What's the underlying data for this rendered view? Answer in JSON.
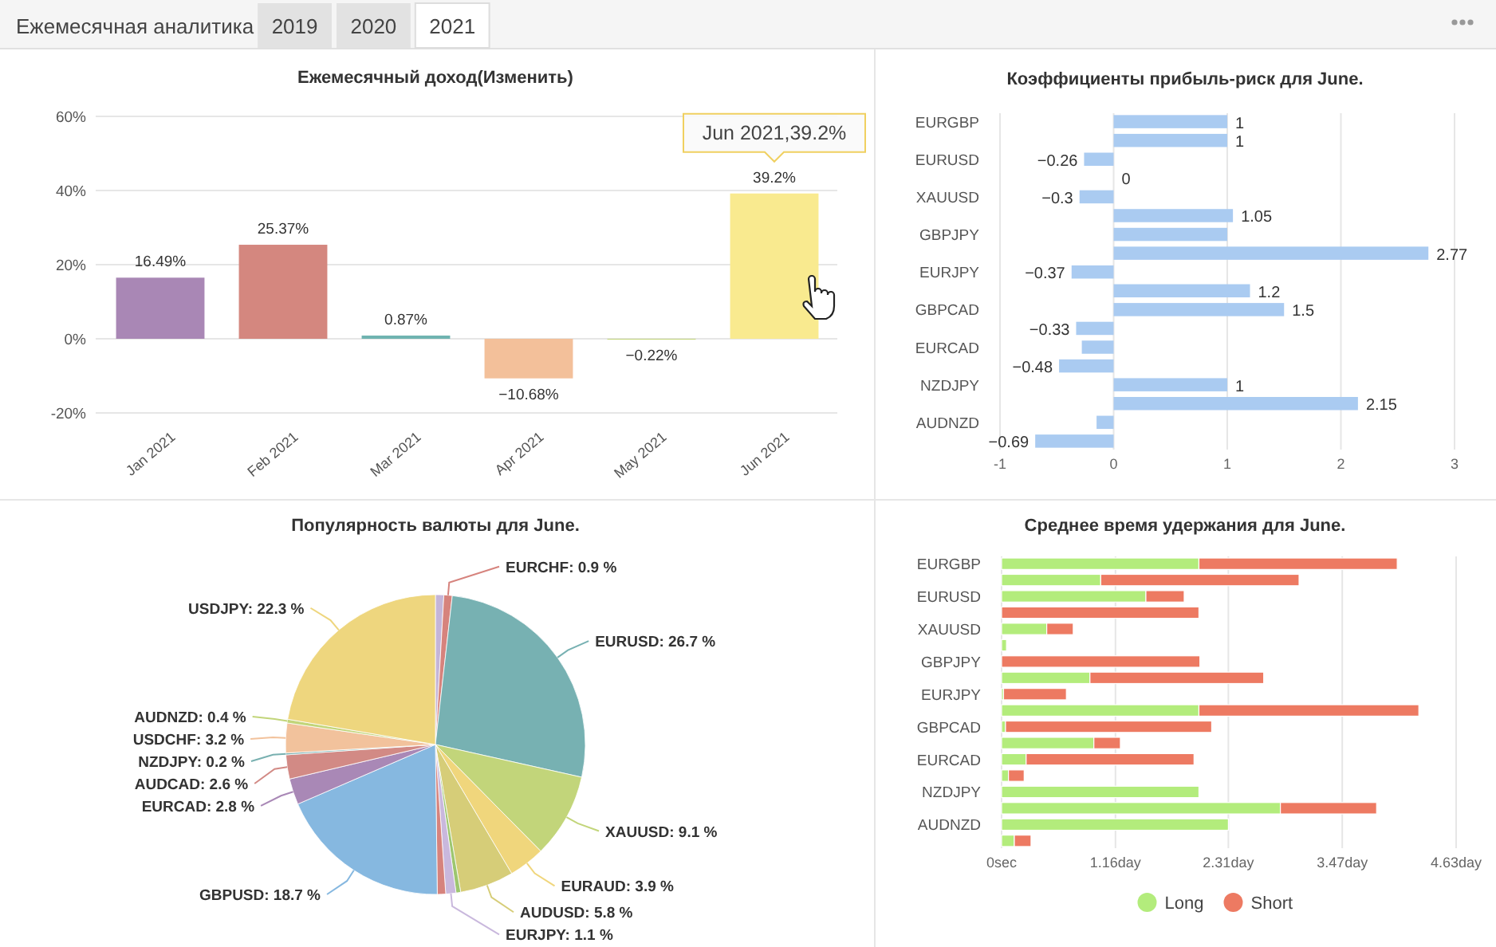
{
  "chart_data": [
    {
      "type": "bar",
      "title": "Ежемесячный доход(Изменить)",
      "categories": [
        "Jan 2021",
        "Feb 2021",
        "Mar 2021",
        "Apr 2021",
        "May 2021",
        "Jun 2021"
      ],
      "values": [
        16.49,
        25.37,
        0.87,
        -10.68,
        -0.22,
        39.2
      ],
      "colors": [
        "#a987b5",
        "#d4877f",
        "#6fb3b0",
        "#f3c09a",
        "#c2d57a",
        "#f9ea8f"
      ],
      "value_labels": [
        "16.49%",
        "25.37%",
        "0.87%",
        "−10.68%",
        "−0.22%",
        "39.2%"
      ],
      "ylim": [
        -20,
        60
      ],
      "yticks": [
        {
          "value": -20,
          "label": "-20%"
        },
        {
          "value": 0,
          "label": "0%"
        },
        {
          "value": 20,
          "label": "20%"
        },
        {
          "value": 40,
          "label": "40%"
        },
        {
          "value": 60,
          "label": "60%"
        }
      ],
      "grid": "y",
      "annotations": [
        "Ежемесячная аналитика",
        "2019",
        "2020",
        "2021",
        {
          "text": "Jun 2021,39.2%",
          "x": "Jun 2021",
          "y": 39.2
        }
      ]
    },
    {
      "type": "bar",
      "orientation": "horizontal",
      "title": "Коэффициенты прибыль-риск для June.",
      "categories": [
        "EURGBP",
        null,
        "EURUSD",
        null,
        "XAUUSD",
        null,
        "GBPJPY",
        null,
        "EURJPY",
        null,
        "GBPCAD",
        null,
        "EURCAD",
        null,
        "NZDJPY",
        null,
        "AUDNZD",
        null
      ],
      "values": [
        1,
        1,
        -0.26,
        0,
        -0.3,
        1.05,
        1,
        2.77,
        -0.37,
        1.2,
        1.5,
        -0.33,
        -0.28,
        -0.48,
        1,
        2.15,
        -0.15,
        -0.69
      ],
      "color": "#aacbf1",
      "value_labels": [
        "1",
        "1",
        "−0.26",
        "0",
        "−0.3",
        "1.05",
        null,
        "2.77",
        "−0.37",
        "1.2",
        "1.5",
        "−0.33",
        null,
        "−0.48",
        "1",
        "2.15",
        null,
        "−0.69"
      ],
      "xlim": [
        -1,
        3
      ],
      "xticks": [
        -1,
        0,
        1,
        2,
        3
      ],
      "grid": "x"
    },
    {
      "type": "pie",
      "title": "Популярность валюты для June.",
      "categories": [
        null,
        "EURCHF",
        "EURUSD",
        "XAUUSD",
        "EURAUD",
        "AUDUSD",
        null,
        "EURJPY",
        null,
        "GBPUSD",
        "EURCAD",
        "AUDCAD",
        "NZDJPY",
        "USDCHF",
        "AUDNZD",
        "USDJPY"
      ],
      "values": [
        0.9,
        0.9,
        26.7,
        9.1,
        3.9,
        5.8,
        0.5,
        1.1,
        0.9,
        18.7,
        2.8,
        2.6,
        0.2,
        3.2,
        0.4,
        22.3
      ],
      "colors": [
        "#c4b5d8",
        "#d6837d",
        "#77b1b2",
        "#c2d57a",
        "#f0d67c",
        "#d6cd78",
        "#9dc66f",
        "#c9b8dd",
        "#d6837d",
        "#86b8e0",
        "#a988b6",
        "#d28a85",
        "#78b0b0",
        "#f2c29c",
        "#c2d57a",
        "#eed67e"
      ],
      "value_labels": [
        null,
        "0.9 %",
        "26.7 %",
        "9.1 %",
        "3.9 %",
        "5.8 %",
        null,
        "1.1 %",
        null,
        "18.7 %",
        "2.8 %",
        "2.6 %",
        "0.2 %",
        "3.2 %",
        "0.4 %",
        "22.3 %"
      ]
    },
    {
      "type": "bar",
      "orientation": "horizontal",
      "stacked": true,
      "title": "Среднее время удержания для June.",
      "categories": [
        "EURGBP",
        null,
        "EURUSD",
        null,
        "XAUUSD",
        null,
        "GBPJPY",
        null,
        "EURJPY",
        null,
        "GBPCAD",
        null,
        "EURCAD",
        null,
        "NZDJPY",
        null,
        "AUDNZD",
        null
      ],
      "series": [
        {
          "name": "Long",
          "color": "#b3ec7c",
          "values": [
            2.01,
            1.01,
            1.47,
            0,
            0.46,
            0.05,
            0,
            0.9,
            0.02,
            2.01,
            0.04,
            0.94,
            0.25,
            0.07,
            2.01,
            2.84,
            2.31,
            0.13
          ]
        },
        {
          "name": "Short",
          "color": "#ed7a62",
          "values": [
            2.02,
            2.02,
            0.39,
            2.01,
            0.27,
            0,
            2.02,
            1.77,
            0.64,
            2.24,
            2.1,
            0.27,
            1.71,
            0.16,
            0,
            0.98,
            0,
            0.17
          ]
        }
      ],
      "xlim": [
        0,
        4.63
      ],
      "xticks": [
        {
          "value": 0,
          "label": "0sec"
        },
        {
          "value": 1.16,
          "label": "1.16day"
        },
        {
          "value": 2.31,
          "label": "2.31day"
        },
        {
          "value": 3.47,
          "label": "3.47day"
        },
        {
          "value": 4.63,
          "label": "4.63day"
        }
      ],
      "grid": "x",
      "legend": "bottom"
    }
  ]
}
